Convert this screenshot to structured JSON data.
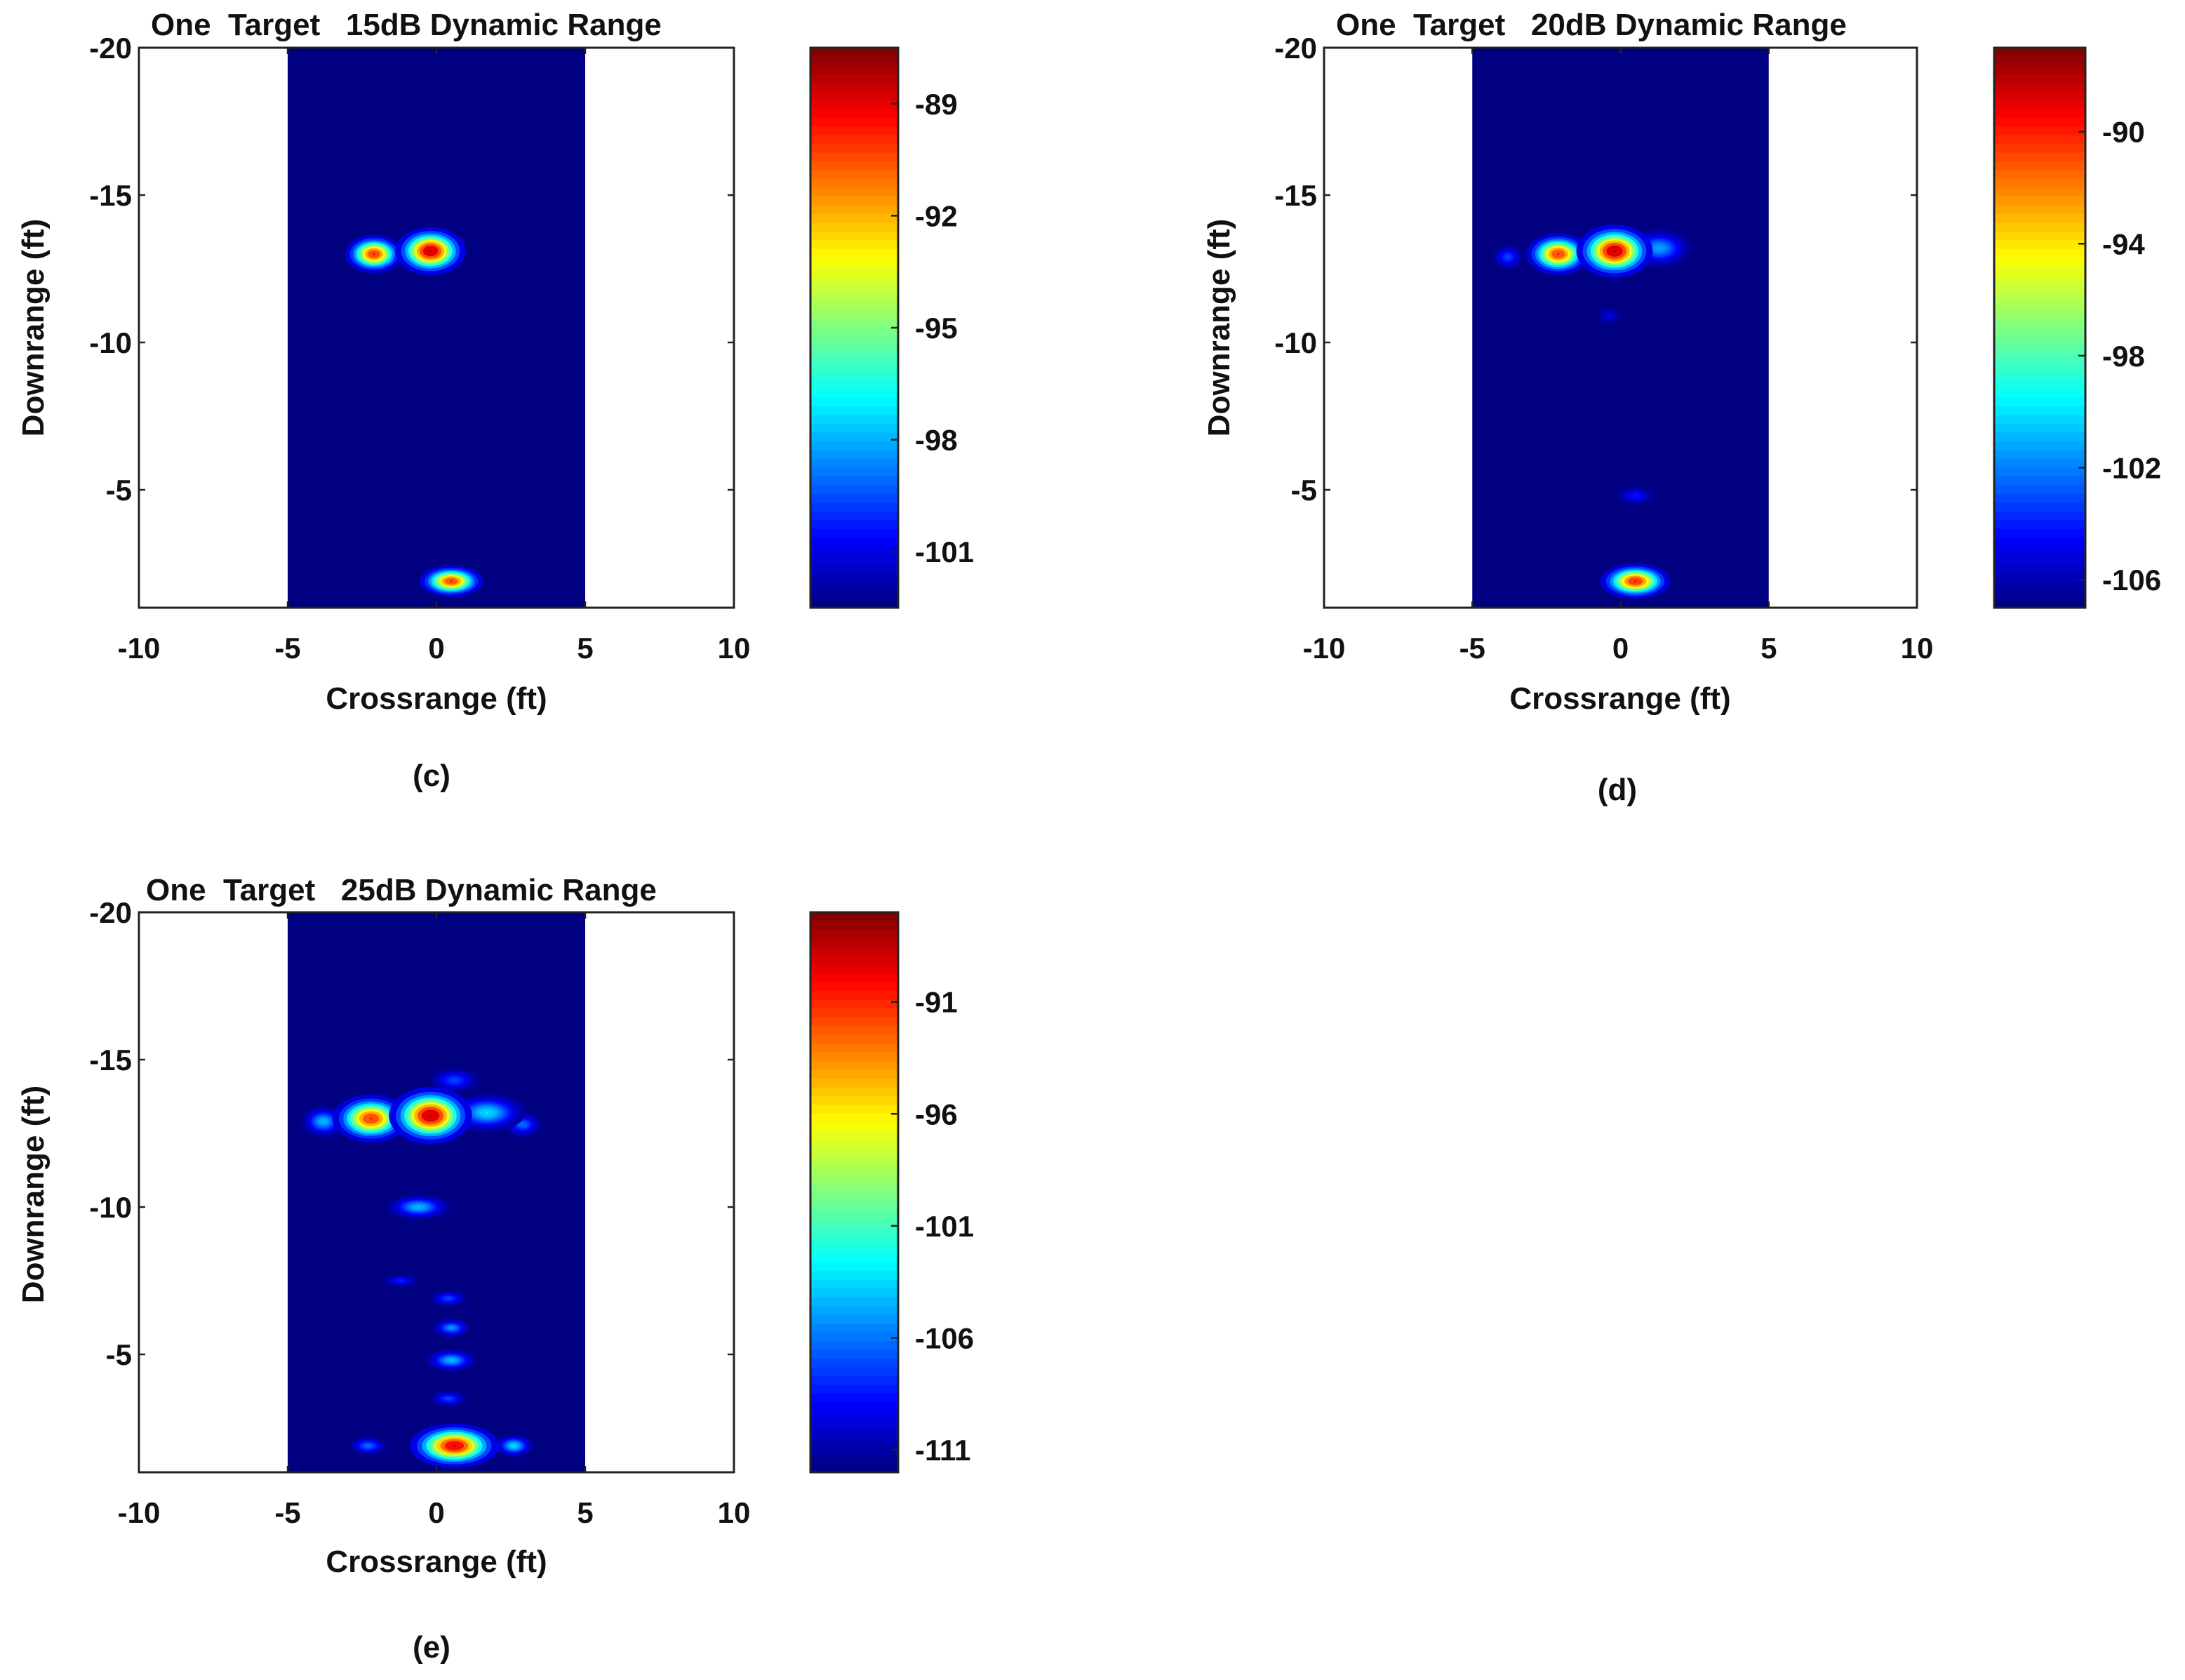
{
  "chart_data": [
    {
      "panel": "(c)",
      "type": "heatmap",
      "title": "One  Target   15dB Dynamic Range",
      "xlabel": "Crossrange (ft)",
      "ylabel": "Downrange (ft)",
      "xlim": [
        -10,
        10
      ],
      "ylim": [
        -20,
        -1
      ],
      "y_reversed": true,
      "x_ticks": [
        -10,
        -5,
        0,
        5,
        10
      ],
      "y_ticks": [
        -20,
        -15,
        -10,
        -5
      ],
      "image_x_extent": [
        -5,
        5
      ],
      "colormap": "jet",
      "color_range_db": [
        -102.5,
        -87.5
      ],
      "colorbar_ticks": [
        -89,
        -92,
        -95,
        -98,
        -101
      ],
      "background_db": -102.5,
      "blobs": [
        {
          "x": -0.2,
          "y": -13.1,
          "peak_db": -87.5,
          "sx": 0.55,
          "sy": 0.38
        },
        {
          "x": -2.1,
          "y": -13.0,
          "peak_db": -89.2,
          "sx": 0.45,
          "sy": 0.3
        },
        {
          "x": 0.5,
          "y": -1.9,
          "peak_db": -89.5,
          "sx": 0.5,
          "sy": 0.25
        }
      ]
    },
    {
      "panel": "(d)",
      "type": "heatmap",
      "title": "One  Target   20dB Dynamic Range",
      "xlabel": "Crossrange (ft)",
      "ylabel": "Downrange (ft)",
      "xlim": [
        -10,
        10
      ],
      "ylim": [
        -20,
        -1
      ],
      "y_reversed": true,
      "x_ticks": [
        -10,
        -5,
        0,
        5,
        10
      ],
      "y_ticks": [
        -20,
        -15,
        -10,
        -5
      ],
      "image_x_extent": [
        -5,
        5
      ],
      "colormap": "jet",
      "color_range_db": [
        -107,
        -87
      ],
      "colorbar_ticks": [
        -90,
        -94,
        -98,
        -102,
        -106
      ],
      "background_db": -107,
      "blobs": [
        {
          "x": -0.2,
          "y": -13.1,
          "peak_db": -87,
          "sx": 0.6,
          "sy": 0.42
        },
        {
          "x": -2.1,
          "y": -13.0,
          "peak_db": -89.5,
          "sx": 0.5,
          "sy": 0.33
        },
        {
          "x": 1.3,
          "y": -13.2,
          "peak_db": -101,
          "sx": 0.5,
          "sy": 0.3
        },
        {
          "x": -3.8,
          "y": -12.9,
          "peak_db": -103,
          "sx": 0.25,
          "sy": 0.2
        },
        {
          "x": 0.5,
          "y": -1.9,
          "peak_db": -89,
          "sx": 0.55,
          "sy": 0.28
        },
        {
          "x": 0.5,
          "y": -4.8,
          "peak_db": -104,
          "sx": 0.3,
          "sy": 0.15
        },
        {
          "x": -0.4,
          "y": -10.9,
          "peak_db": -105,
          "sx": 0.2,
          "sy": 0.15
        }
      ]
    },
    {
      "panel": "(e)",
      "type": "heatmap",
      "title": "One  Target   25dB Dynamic Range",
      "xlabel": "Crossrange (ft)",
      "ylabel": "Downrange (ft)",
      "xlim": [
        -10,
        10
      ],
      "ylim": [
        -20,
        -1
      ],
      "y_reversed": true,
      "x_ticks": [
        -10,
        -5,
        0,
        5,
        10
      ],
      "y_ticks": [
        -20,
        -15,
        -10,
        -5
      ],
      "image_x_extent": [
        -5,
        5
      ],
      "colormap": "jet",
      "color_range_db": [
        -112,
        -87
      ],
      "colorbar_ticks": [
        -91,
        -96,
        -101,
        -106,
        -111
      ],
      "background_db": -112,
      "blobs": [
        {
          "x": -0.2,
          "y": -13.1,
          "peak_db": -87,
          "sx": 0.65,
          "sy": 0.45
        },
        {
          "x": -2.2,
          "y": -13.0,
          "peak_db": -90,
          "sx": 0.6,
          "sy": 0.38
        },
        {
          "x": 1.7,
          "y": -13.2,
          "peak_db": -103,
          "sx": 0.6,
          "sy": 0.3
        },
        {
          "x": -3.8,
          "y": -12.9,
          "peak_db": -104,
          "sx": 0.35,
          "sy": 0.25
        },
        {
          "x": 2.9,
          "y": -12.8,
          "peak_db": -106,
          "sx": 0.3,
          "sy": 0.2
        },
        {
          "x": 0.6,
          "y": -14.3,
          "peak_db": -107,
          "sx": 0.4,
          "sy": 0.2
        },
        {
          "x": -0.6,
          "y": -10.0,
          "peak_db": -104,
          "sx": 0.5,
          "sy": 0.2
        },
        {
          "x": 0.4,
          "y": -6.9,
          "peak_db": -107,
          "sx": 0.3,
          "sy": 0.13
        },
        {
          "x": 0.5,
          "y": -5.9,
          "peak_db": -105,
          "sx": 0.3,
          "sy": 0.15
        },
        {
          "x": 0.5,
          "y": -4.8,
          "peak_db": -104,
          "sx": 0.4,
          "sy": 0.18
        },
        {
          "x": 0.4,
          "y": -3.5,
          "peak_db": -107,
          "sx": 0.3,
          "sy": 0.13
        },
        {
          "x": -1.2,
          "y": -7.5,
          "peak_db": -108,
          "sx": 0.3,
          "sy": 0.1
        },
        {
          "x": 0.6,
          "y": -1.9,
          "peak_db": -88,
          "sx": 0.7,
          "sy": 0.35
        },
        {
          "x": 2.6,
          "y": -1.9,
          "peak_db": -103,
          "sx": 0.3,
          "sy": 0.18
        },
        {
          "x": -2.3,
          "y": -1.9,
          "peak_db": -106,
          "sx": 0.3,
          "sy": 0.15
        }
      ]
    }
  ]
}
